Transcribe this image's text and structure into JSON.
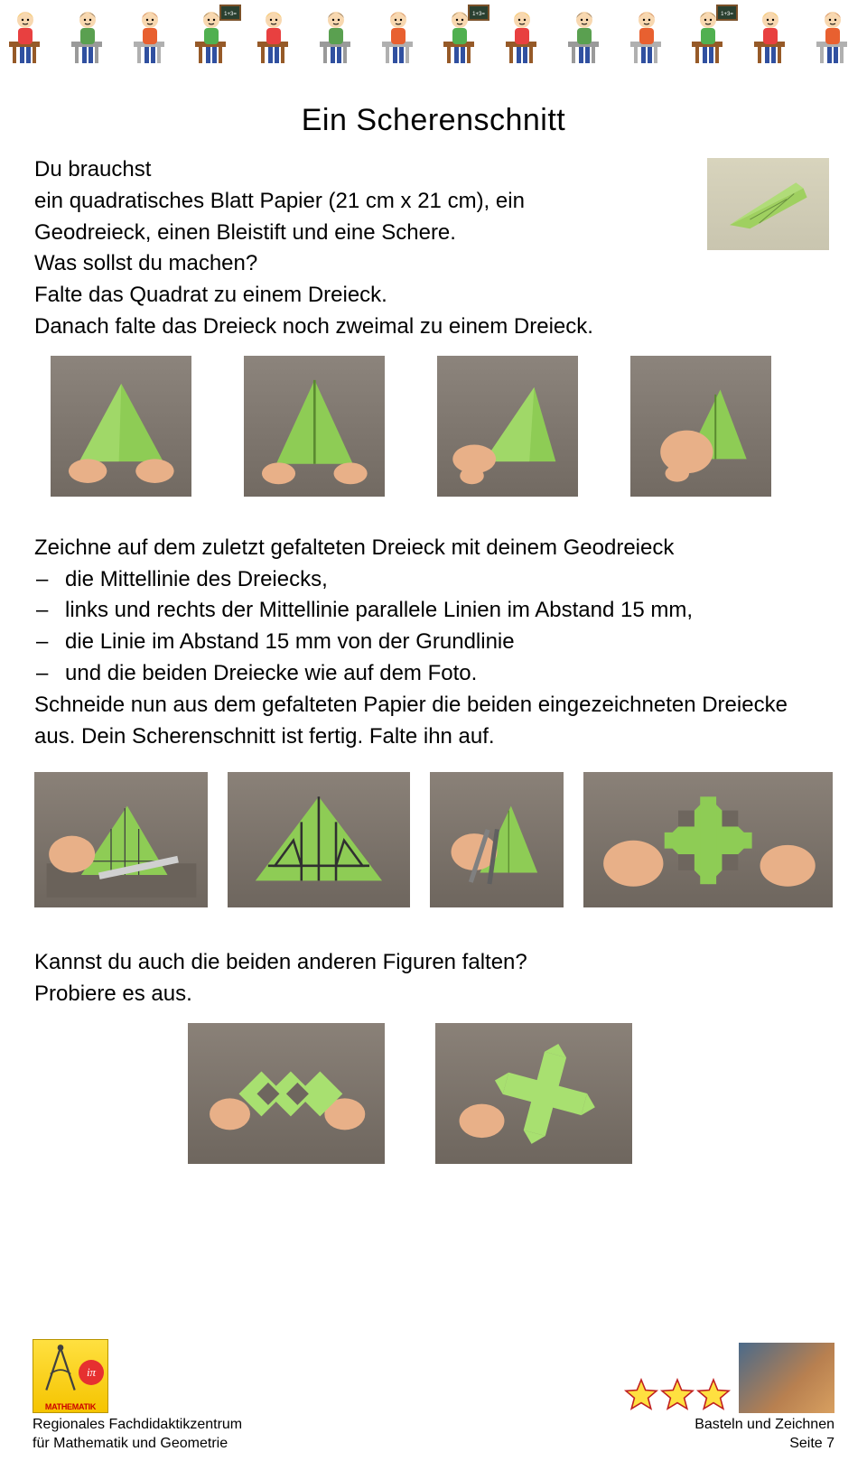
{
  "header": {
    "kids": [
      {
        "shirt": "#e84040",
        "hair": "#f2c030",
        "desk": "#965a28"
      },
      {
        "shirt": "#5aa050",
        "hair": "#3a2a18",
        "desk": "#9a9a9a"
      },
      {
        "shirt": "#e86030",
        "hair": "#b85020",
        "desk": "#b0b0b0"
      },
      {
        "shirt": "#50b050",
        "hair": "#5a400a",
        "desk": "#965a28",
        "blackboard": true
      },
      {
        "shirt": "#e84040",
        "hair": "#f2c030",
        "desk": "#965a28"
      },
      {
        "shirt": "#5aa050",
        "hair": "#3a2a18",
        "desk": "#9a9a9a"
      },
      {
        "shirt": "#e86030",
        "hair": "#b85020",
        "desk": "#b0b0b0"
      },
      {
        "shirt": "#50b050",
        "hair": "#5a400a",
        "desk": "#965a28",
        "blackboard": true
      },
      {
        "shirt": "#e84040",
        "hair": "#f2c030",
        "desk": "#965a28"
      },
      {
        "shirt": "#5aa050",
        "hair": "#3a2a18",
        "desk": "#9a9a9a"
      },
      {
        "shirt": "#e86030",
        "hair": "#b85020",
        "desk": "#b0b0b0"
      },
      {
        "shirt": "#50b050",
        "hair": "#5a400a",
        "desk": "#965a28",
        "blackboard": true
      },
      {
        "shirt": "#e84040",
        "hair": "#f2c030",
        "desk": "#965a28"
      },
      {
        "shirt": "#e86030",
        "hair": "#b85020",
        "desk": "#b0b0b0"
      }
    ]
  },
  "title": "Ein Scherenschnitt",
  "section1": {
    "heading": "Du brauchst",
    "line1": "ein quadratisches Blatt Papier (21 cm x 21 cm), ein",
    "line2": "Geodreieck, einen Bleistift und eine Schere."
  },
  "section2": {
    "heading": "Was sollst du machen?",
    "line1": "Falte das Quadrat zu einem Dreieck.",
    "line2": "Danach falte das Dreieck noch zweimal zu einem Dreieck."
  },
  "side_photo": {
    "paper_color": "#9fd060",
    "bg": "#d4d0ba"
  },
  "fold_photos": {
    "paper_color": "#8ecc55",
    "skin": "#e8b088",
    "bg": "#7a7269"
  },
  "section3": {
    "intro": "Zeichne auf dem zuletzt gefalteten Dreieck mit deinem Geodreieck",
    "bullets": [
      "die Mittellinie des Dreiecks,",
      "links und rechts der Mittellinie parallele Linien im Abstand 15 mm,",
      "die Linie im Abstand 15 mm von der Grundlinie",
      "und die beiden Dreiecke wie auf dem Foto."
    ],
    "after1": "Schneide nun aus dem gefalteten Papier die beiden eingezeichneten Dreiecke",
    "after2": "aus. Dein Scherenschnitt ist fertig. Falte ihn auf."
  },
  "result_photos": {
    "paper_color": "#8ecc55",
    "skin": "#e8b088"
  },
  "section4": {
    "line1": "Kannst du auch die beiden anderen Figuren falten?",
    "line2": "Probiere es aus."
  },
  "extra_photos": {
    "paper_color": "#a8e070",
    "skin": "#e8b088"
  },
  "footer": {
    "logo_text": "MATHEMATIK",
    "pi_text": "iπ",
    "left_line1": "Regionales Fachdidaktikzentrum",
    "left_line2": "für Mathematik und Geometrie",
    "right_line1": "Basteln und Zeichnen",
    "right_line2": "Seite 7",
    "star_count": 3,
    "star_fill": "#ffe040",
    "star_stroke": "#c02020"
  }
}
